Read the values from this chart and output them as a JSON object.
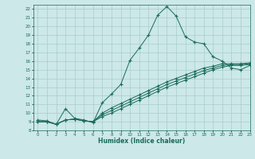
{
  "bg_color": "#cce8e8",
  "line_color": "#1a6b5a",
  "grid_color": "#aacccc",
  "xlabel": "Humidex (Indice chaleur)",
  "xlim": [
    -0.5,
    23
  ],
  "ylim": [
    8,
    22.5
  ],
  "xticks": [
    0,
    1,
    2,
    3,
    4,
    5,
    6,
    7,
    8,
    9,
    10,
    11,
    12,
    13,
    14,
    15,
    16,
    17,
    18,
    19,
    20,
    21,
    22,
    23
  ],
  "yticks": [
    8,
    9,
    10,
    11,
    12,
    13,
    14,
    15,
    16,
    17,
    18,
    19,
    20,
    21,
    22
  ],
  "curve1_x": [
    0,
    1,
    2,
    3,
    4,
    5,
    6,
    7,
    8,
    9,
    10,
    11,
    12,
    13,
    14,
    15,
    16,
    17,
    18,
    19,
    20,
    21,
    22,
    23
  ],
  "curve1_y": [
    9.2,
    9.1,
    8.7,
    10.5,
    9.4,
    9.2,
    8.9,
    11.2,
    12.2,
    13.3,
    16.1,
    17.5,
    19.0,
    21.3,
    22.3,
    21.2,
    18.8,
    18.2,
    18.0,
    16.5,
    16.0,
    15.2,
    15.0,
    15.5
  ],
  "curve2_x": [
    0,
    1,
    2,
    3,
    4,
    5,
    6,
    7,
    8,
    9,
    10,
    11,
    12,
    13,
    14,
    15,
    16,
    17,
    18,
    19,
    20,
    21,
    22,
    23
  ],
  "curve2_y": [
    9.0,
    9.0,
    8.7,
    9.2,
    9.3,
    9.1,
    9.0,
    9.6,
    10.0,
    10.5,
    11.0,
    11.5,
    12.0,
    12.5,
    13.0,
    13.4,
    13.8,
    14.2,
    14.6,
    15.0,
    15.3,
    15.5,
    15.5,
    15.6
  ],
  "curve3_x": [
    0,
    1,
    2,
    3,
    4,
    5,
    6,
    7,
    8,
    9,
    10,
    11,
    12,
    13,
    14,
    15,
    16,
    17,
    18,
    19,
    20,
    21,
    22,
    23
  ],
  "curve3_y": [
    9.0,
    9.0,
    8.7,
    9.2,
    9.3,
    9.1,
    9.0,
    9.8,
    10.3,
    10.8,
    11.3,
    11.8,
    12.3,
    12.8,
    13.3,
    13.7,
    14.1,
    14.5,
    14.9,
    15.2,
    15.5,
    15.6,
    15.6,
    15.7
  ],
  "curve4_x": [
    0,
    1,
    2,
    3,
    4,
    5,
    6,
    7,
    8,
    9,
    10,
    11,
    12,
    13,
    14,
    15,
    16,
    17,
    18,
    19,
    20,
    21,
    22,
    23
  ],
  "curve4_y": [
    9.0,
    9.0,
    8.7,
    9.2,
    9.3,
    9.1,
    9.0,
    10.0,
    10.6,
    11.1,
    11.6,
    12.1,
    12.6,
    13.1,
    13.6,
    14.0,
    14.4,
    14.8,
    15.2,
    15.4,
    15.7,
    15.7,
    15.7,
    15.8
  ]
}
